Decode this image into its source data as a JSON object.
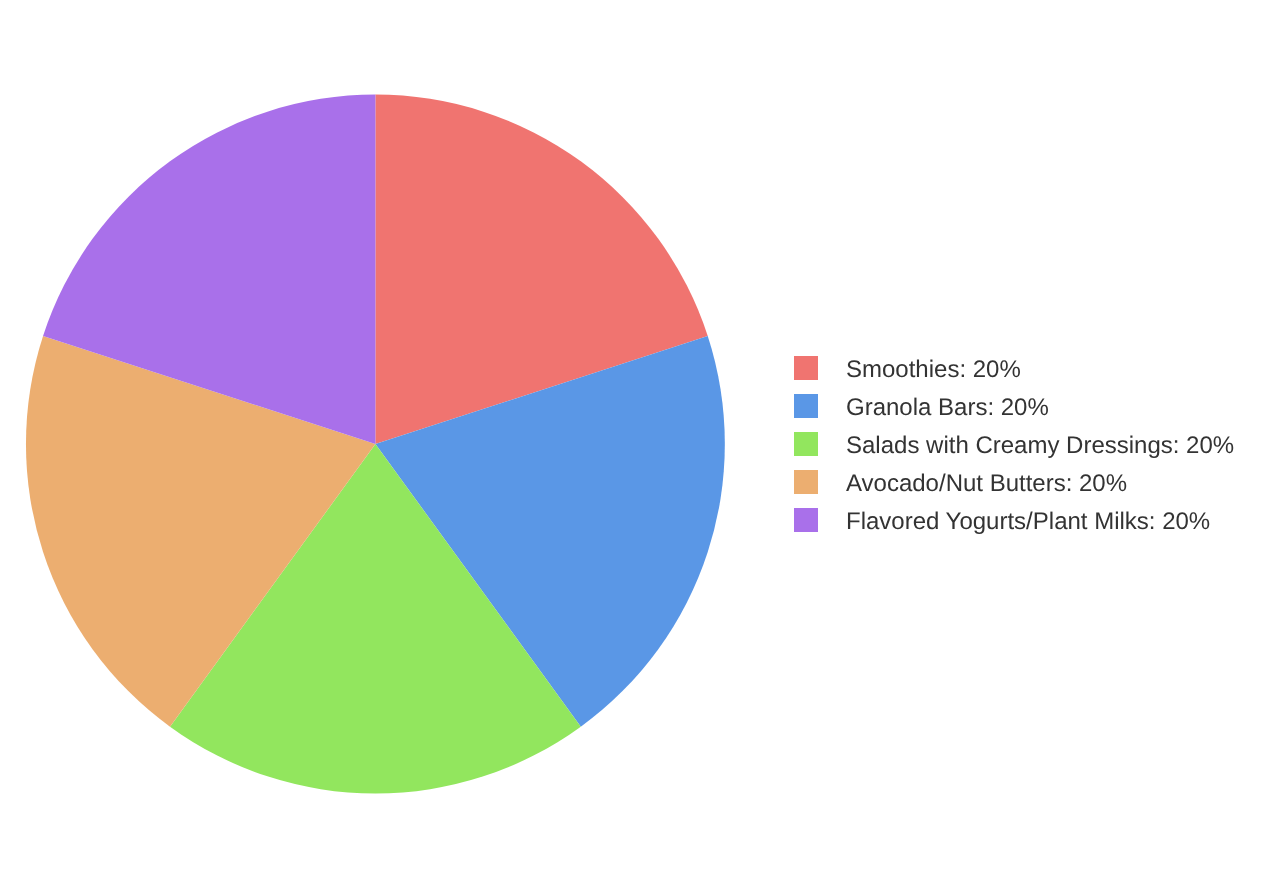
{
  "chart_data": {
    "type": "pie",
    "categories": [
      "Smoothies",
      "Granola Bars",
      "Salads with Creamy Dressings",
      "Avocado/Nut Butters",
      "Flavored Yogurts/Plant Milks"
    ],
    "values": [
      20,
      20,
      20,
      20,
      20
    ],
    "value_labels": [
      "20%",
      "20%",
      "20%",
      "20%",
      "20%"
    ],
    "colors": [
      "#f07470",
      "#5a97e6",
      "#92e65e",
      "#ecae70",
      "#a970ea"
    ],
    "legend": "right"
  }
}
